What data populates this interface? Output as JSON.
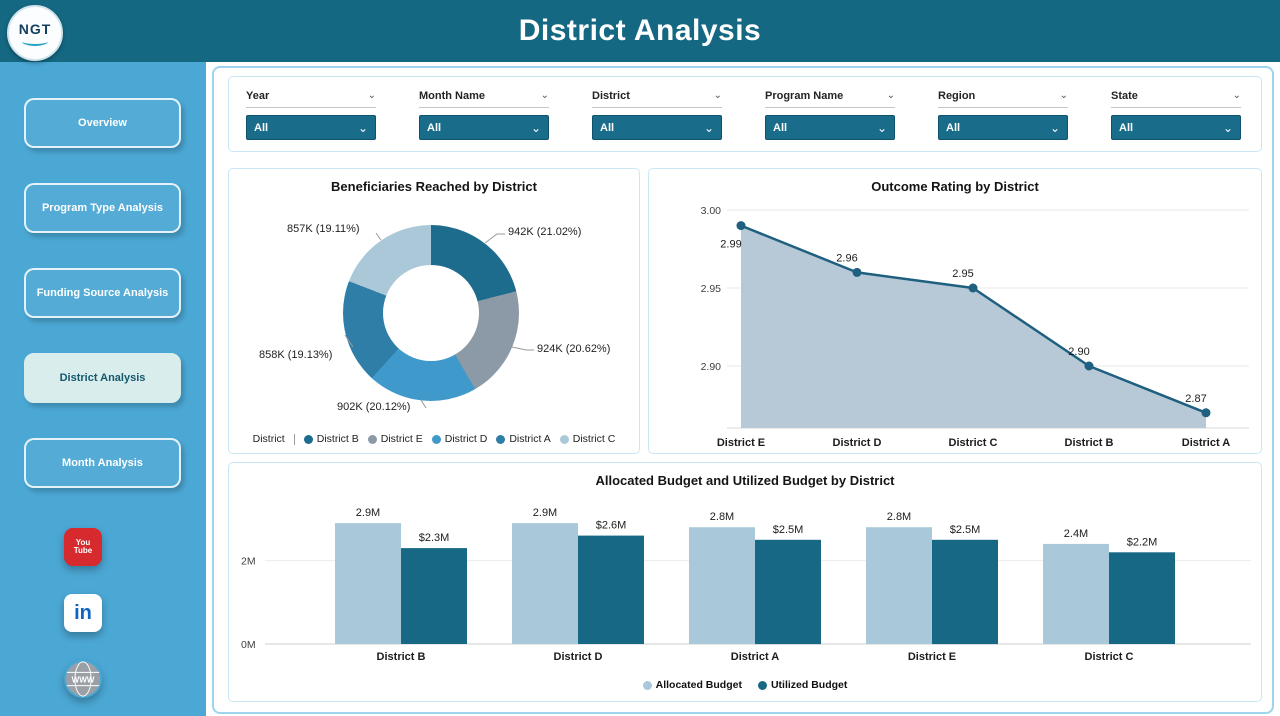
{
  "header": {
    "title": "District Analysis",
    "logo_text": "NGT"
  },
  "sidebar": {
    "items": [
      {
        "label": "Overview",
        "active": false
      },
      {
        "label": "Program Type Analysis",
        "active": false
      },
      {
        "label": "Funding Source Analysis",
        "active": false
      },
      {
        "label": "District Analysis",
        "active": true
      },
      {
        "label": "Month Analysis",
        "active": false
      }
    ],
    "social": [
      {
        "name": "youtube",
        "text": "You Tube"
      },
      {
        "name": "linkedin",
        "text": "in"
      },
      {
        "name": "website",
        "text": "WWW"
      }
    ]
  },
  "filters": [
    {
      "label": "Year",
      "value": "All"
    },
    {
      "label": "Month Name",
      "value": "All"
    },
    {
      "label": "District",
      "value": "All"
    },
    {
      "label": "Program Name",
      "value": "All"
    },
    {
      "label": "Region",
      "value": "All"
    },
    {
      "label": "State",
      "value": "All"
    }
  ],
  "chart_data": [
    {
      "type": "pie",
      "title": "Beneficiaries Reached by District",
      "legend_title": "District",
      "legend_position": "bottom",
      "slices": [
        {
          "name": "District B",
          "value": 942000,
          "value_label": "942K (21.02%)",
          "pct": 21.02,
          "color": "#1d6c8e"
        },
        {
          "name": "District E",
          "value": 924000,
          "value_label": "924K (20.62%)",
          "pct": 20.62,
          "color": "#8b9aa6"
        },
        {
          "name": "District D",
          "value": 902000,
          "value_label": "902K (20.12%)",
          "pct": 20.12,
          "color": "#3f99cb"
        },
        {
          "name": "District A",
          "value": 858000,
          "value_label": "858K (19.13%)",
          "pct": 19.13,
          "color": "#2e7ea8"
        },
        {
          "name": "District C",
          "value": 857000,
          "value_label": "857K (19.11%)",
          "pct": 19.11,
          "color": "#abc8d9"
        }
      ]
    },
    {
      "type": "area",
      "title": "Outcome Rating by District",
      "categories": [
        "District E",
        "District D",
        "District C",
        "District B",
        "District A"
      ],
      "values": [
        2.99,
        2.96,
        2.95,
        2.9,
        2.87
      ],
      "labels": [
        "2.99",
        "2.96",
        "2.95",
        "2.90",
        "2.87"
      ],
      "yticks": [
        "3.00",
        "2.95",
        "2.90"
      ],
      "ylim": [
        2.86,
        3.0
      ],
      "grid": true,
      "line_color": "#1f5f80",
      "fill_color": "#b7c9d6"
    },
    {
      "type": "bar",
      "title": "Allocated Budget and Utilized Budget by District",
      "categories": [
        "District B",
        "District D",
        "District A",
        "District E",
        "District C"
      ],
      "series": [
        {
          "name": "Allocated Budget",
          "color": "#a9c9db",
          "values": [
            2.9,
            2.9,
            2.8,
            2.8,
            2.4
          ],
          "labels": [
            "2.9M",
            "2.9M",
            "2.8M",
            "2.8M",
            "2.4M"
          ]
        },
        {
          "name": "Utilized Budget",
          "color": "#176884",
          "values": [
            2.3,
            2.6,
            2.5,
            2.5,
            2.2
          ],
          "labels": [
            "$2.3M",
            "$2.6M",
            "$2.5M",
            "$2.5M",
            "$2.2M"
          ]
        }
      ],
      "yticks": [
        "2M",
        "0M"
      ],
      "ylim": [
        0,
        3.5
      ],
      "legend_position": "bottom"
    }
  ],
  "colors": {
    "header_bg": "#156882",
    "sidebar_bg": "#4BA7D4",
    "dropdown_bg": "#1A6D8A",
    "panel_border": "#C9E6F4",
    "active_item_bg": "#D9EDEC",
    "active_item_text": "#14586E",
    "youtube_red": "#d62a2e",
    "linkedin_blue": "#0a66c2"
  }
}
